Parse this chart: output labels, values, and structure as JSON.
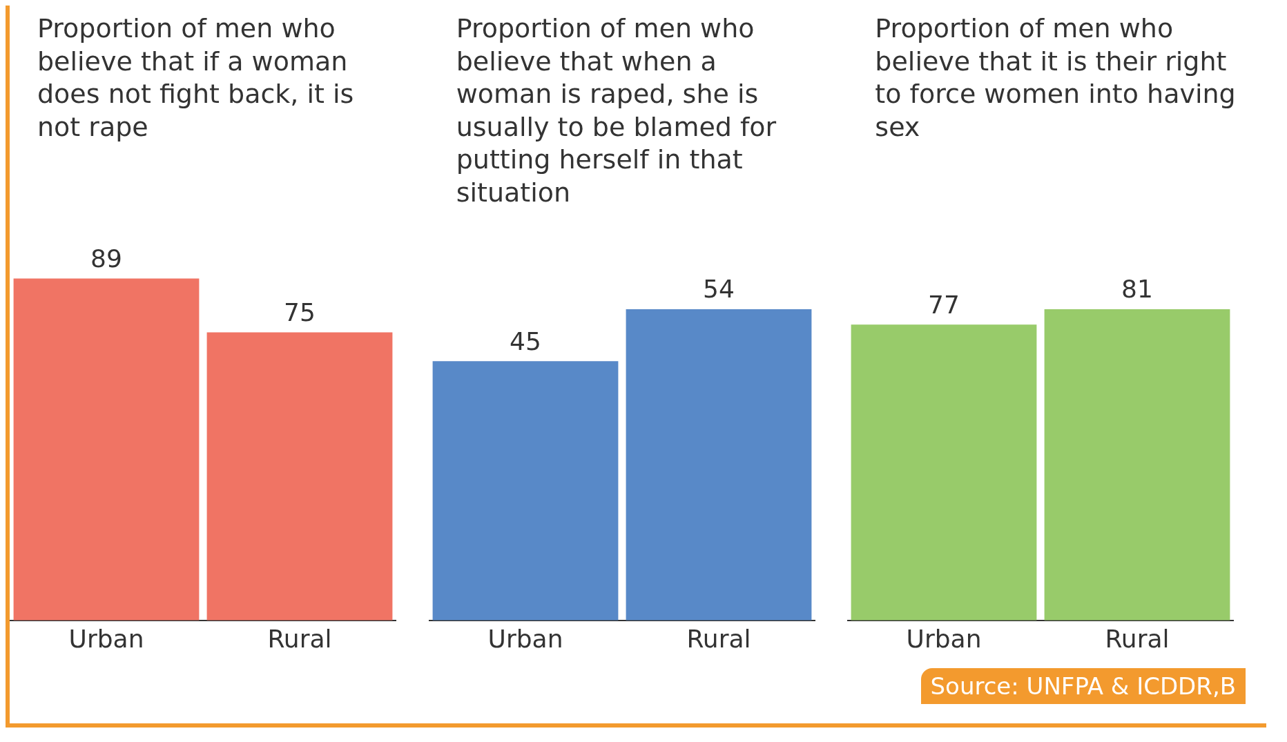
{
  "chart_data": [
    {
      "type": "bar",
      "title": "Proportion of men who believe that if a woman does not fight back, it is not rape",
      "categories": [
        "Urban",
        "Rural"
      ],
      "values": [
        89,
        75
      ],
      "color": "#f07464",
      "data_labels": true,
      "grid": false
    },
    {
      "type": "bar",
      "title": "Proportion of men who believe that when a woman is raped, she is usually to be blamed for putting herself in that situation",
      "categories": [
        "Urban",
        "Rural"
      ],
      "values": [
        45,
        54
      ],
      "color": "#5889c8",
      "data_labels": true,
      "grid": false
    },
    {
      "type": "bar",
      "title": "Proportion of men who believe that it is their right to force women into having sex",
      "categories": [
        "Urban",
        "Rural"
      ],
      "values": [
        77,
        81
      ],
      "color": "#98cb6a",
      "data_labels": true,
      "grid": false,
      "annotations": [
        "Source: UNFPA & ICDDR,B"
      ]
    }
  ]
}
